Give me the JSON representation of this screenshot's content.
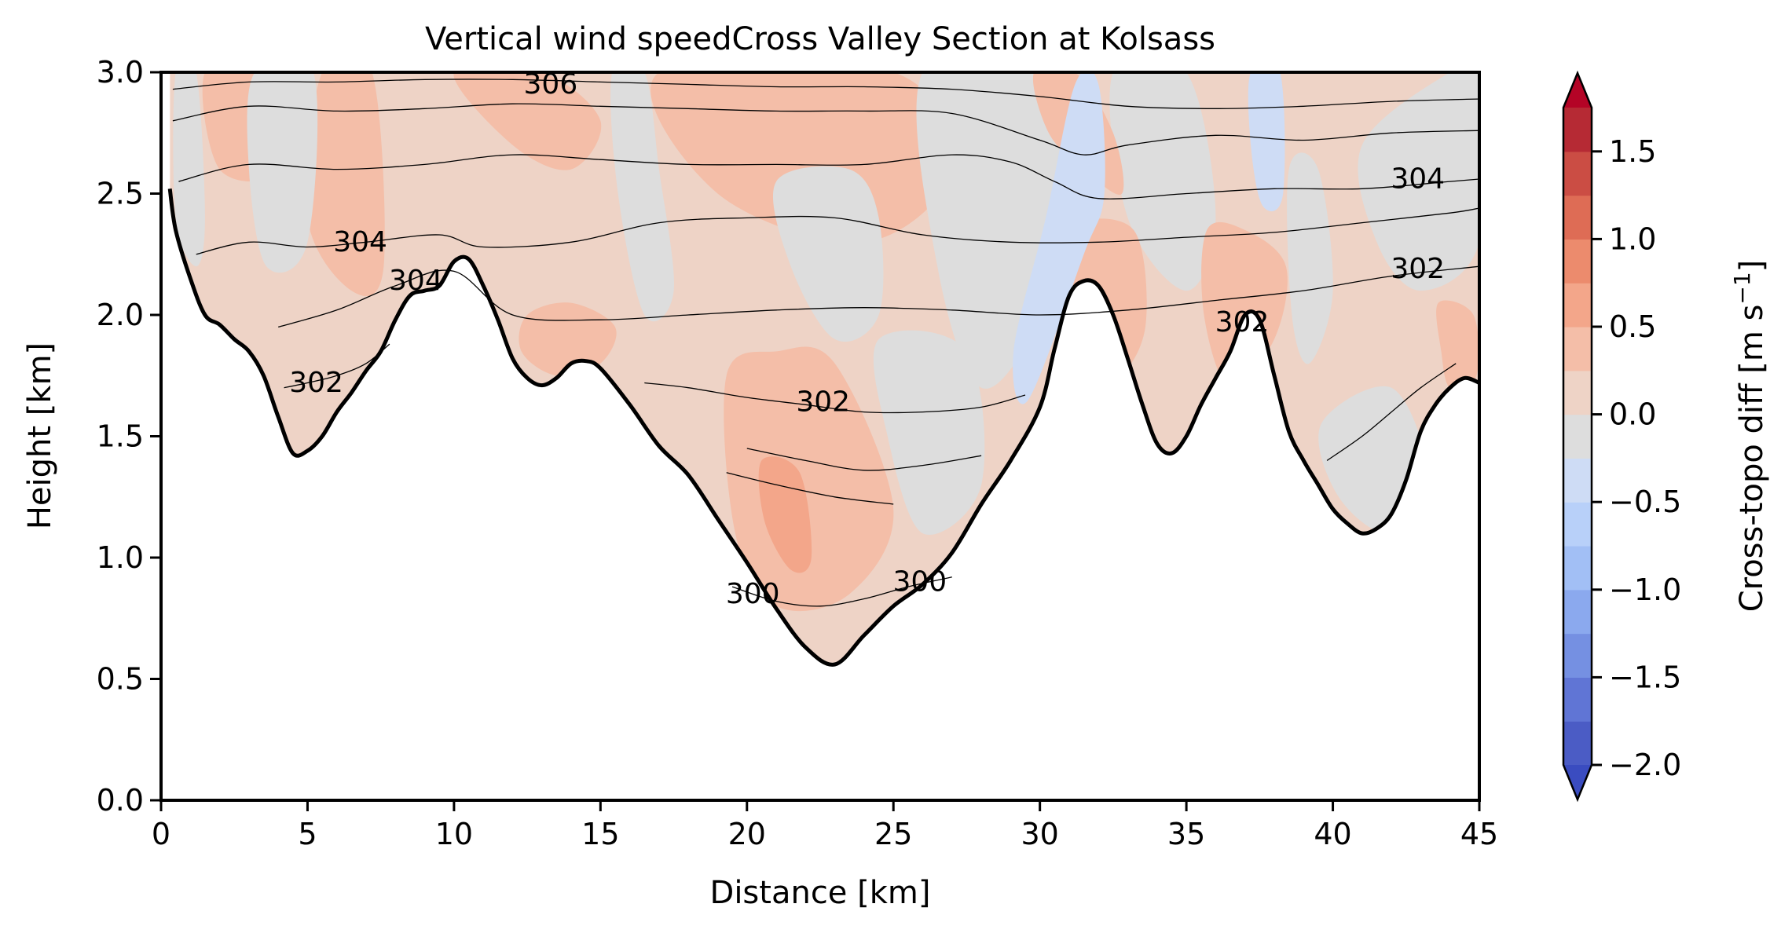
{
  "chart_data": {
    "type": "contour",
    "title": "Vertical wind speedCross Valley Section at Kolsass",
    "xlabel": "Distance [km]",
    "ylabel": "Height [km]",
    "xlim": [
      0,
      45
    ],
    "ylim": [
      0,
      3.0
    ],
    "x_ticks": [
      0,
      5,
      10,
      15,
      20,
      25,
      30,
      35,
      40,
      45
    ],
    "y_ticks": [
      0.0,
      0.5,
      1.0,
      1.5,
      2.0,
      2.5,
      3.0
    ],
    "x_tick_labels": [
      "0",
      "5",
      "10",
      "15",
      "20",
      "25",
      "30",
      "35",
      "40",
      "45"
    ],
    "y_tick_labels": [
      "0.0",
      "0.5",
      "1.0",
      "1.5",
      "2.0",
      "2.5",
      "3.0"
    ],
    "grid": false,
    "terrain": {
      "x": [
        0.3,
        0.5,
        1.0,
        1.5,
        2.0,
        2.5,
        3.0,
        3.5,
        4.0,
        4.5,
        5.0,
        5.5,
        6.0,
        6.5,
        7.0,
        7.5,
        8.0,
        8.5,
        9.0,
        9.5,
        10.0,
        10.5,
        11.0,
        11.5,
        12.0,
        12.5,
        13.0,
        13.5,
        14.0,
        14.5,
        15.0,
        16.0,
        17.0,
        18.0,
        19.0,
        20.0,
        21.0,
        22.0,
        23.0,
        24.0,
        25.0,
        26.0,
        27.0,
        28.0,
        29.0,
        30.0,
        30.5,
        31.0,
        31.5,
        32.0,
        32.5,
        33.0,
        33.5,
        34.0,
        34.5,
        35.0,
        35.5,
        36.0,
        36.5,
        37.0,
        37.5,
        38.0,
        38.5,
        39.0,
        39.5,
        40.0,
        40.5,
        41.0,
        41.5,
        42.0,
        42.5,
        43.0,
        43.5,
        44.0,
        44.5,
        45.0
      ],
      "y": [
        2.52,
        2.35,
        2.15,
        2.0,
        1.96,
        1.9,
        1.85,
        1.75,
        1.58,
        1.43,
        1.44,
        1.5,
        1.6,
        1.68,
        1.77,
        1.85,
        1.98,
        2.08,
        2.1,
        2.12,
        2.22,
        2.23,
        2.12,
        1.98,
        1.82,
        1.74,
        1.71,
        1.74,
        1.8,
        1.81,
        1.78,
        1.63,
        1.46,
        1.34,
        1.16,
        0.98,
        0.79,
        0.63,
        0.56,
        0.68,
        0.8,
        0.89,
        1.02,
        1.22,
        1.4,
        1.62,
        1.86,
        2.08,
        2.14,
        2.12,
        2.0,
        1.82,
        1.63,
        1.47,
        1.43,
        1.5,
        1.63,
        1.74,
        1.85,
        2.0,
        1.98,
        1.75,
        1.52,
        1.4,
        1.3,
        1.2,
        1.14,
        1.1,
        1.12,
        1.18,
        1.32,
        1.52,
        1.63,
        1.7,
        1.74,
        1.72
      ]
    },
    "colorbar": {
      "label": "Cross-topo diff [m s",
      "label_sup": "−1",
      "label_end": "]",
      "levels": [
        -2.0,
        -1.75,
        -1.5,
        -1.25,
        -1.0,
        -0.75,
        -0.5,
        -0.25,
        0.0,
        0.25,
        0.5,
        0.75,
        1.0,
        1.25,
        1.5,
        1.75
      ],
      "colors": [
        "#4b5cc5",
        "#6075d5",
        "#7590e2",
        "#8ba9ee",
        "#a2bff5",
        "#b8d0f9",
        "#cedcf5",
        "#dddddd",
        "#eed3c6",
        "#f4bea8",
        "#f3a68a",
        "#ec8b6d",
        "#de6c55",
        "#cb4d44",
        "#b62a34"
      ],
      "under_color": "#3a4cc0",
      "over_color": "#b40426",
      "extend": "both",
      "tick_values": [
        -2.0,
        -1.5,
        -1.0,
        -0.5,
        0.0,
        0.5,
        1.0,
        1.5
      ],
      "tick_labels": [
        "−2.0",
        "−1.5",
        "−1.0",
        "−0.5",
        "0.0",
        "0.5",
        "1.0",
        "1.5"
      ]
    },
    "contour_lines": [
      {
        "level": 300,
        "x": [
          19.5,
          21,
          22.5,
          24,
          25.5,
          27
        ],
        "y": [
          0.88,
          0.82,
          0.8,
          0.83,
          0.88,
          0.92
        ]
      },
      {
        "level": 300,
        "x": [
          19.3,
          21,
          23,
          25
        ],
        "y": [
          1.35,
          1.3,
          1.25,
          1.22
        ]
      },
      {
        "level": 300,
        "x": [
          20,
          22,
          24,
          26,
          28
        ],
        "y": [
          1.45,
          1.4,
          1.36,
          1.38,
          1.42
        ]
      },
      {
        "level": 302,
        "x": [
          4.2,
          5,
          6,
          7,
          7.8
        ],
        "y": [
          1.7,
          1.72,
          1.75,
          1.8,
          1.88
        ]
      },
      {
        "level": 302,
        "x": [
          16.5,
          18,
          20,
          22,
          24,
          26,
          28,
          29.5
        ],
        "y": [
          1.72,
          1.7,
          1.66,
          1.63,
          1.6,
          1.6,
          1.62,
          1.67
        ]
      },
      {
        "level": 302,
        "x": [
          39.8,
          41,
          42,
          43,
          44.2
        ],
        "y": [
          1.4,
          1.5,
          1.6,
          1.7,
          1.8
        ]
      },
      {
        "level": 302,
        "x": [
          4.0,
          6,
          8,
          10,
          12,
          15,
          18,
          21,
          24,
          27,
          30,
          33,
          36,
          39,
          42,
          45
        ],
        "y": [
          1.95,
          2.02,
          2.12,
          2.18,
          2.0,
          1.98,
          2.0,
          2.02,
          2.03,
          2.02,
          2.0,
          2.02,
          2.06,
          2.1,
          2.16,
          2.2
        ]
      },
      {
        "level": 304,
        "x": [
          1.2,
          3,
          5,
          7,
          9.5,
          11,
          14,
          17,
          20,
          23,
          26,
          29,
          32,
          35,
          38,
          41,
          44,
          45
        ],
        "y": [
          2.25,
          2.3,
          2.28,
          2.3,
          2.33,
          2.28,
          2.3,
          2.38,
          2.4,
          2.4,
          2.33,
          2.3,
          2.3,
          2.32,
          2.34,
          2.38,
          2.42,
          2.44
        ]
      },
      {
        "level": 304,
        "x": [
          0.6,
          3,
          6,
          9,
          12,
          15,
          18,
          21,
          24,
          27,
          29,
          30.5,
          32,
          35,
          38,
          41,
          44,
          45
        ],
        "y": [
          2.55,
          2.62,
          2.6,
          2.62,
          2.66,
          2.64,
          2.62,
          2.62,
          2.62,
          2.66,
          2.63,
          2.55,
          2.48,
          2.5,
          2.52,
          2.52,
          2.55,
          2.56
        ]
      },
      {
        "level": 306,
        "x": [
          0.4,
          3,
          6,
          9,
          12,
          15,
          18,
          21,
          24,
          27,
          30,
          31.5,
          33,
          36,
          39,
          42,
          45
        ],
        "y": [
          2.8,
          2.86,
          2.84,
          2.85,
          2.87,
          2.86,
          2.85,
          2.84,
          2.84,
          2.83,
          2.72,
          2.66,
          2.7,
          2.74,
          2.72,
          2.75,
          2.76
        ]
      },
      {
        "level": 306,
        "x": [
          0.4,
          3,
          6,
          9,
          12,
          15,
          18,
          21,
          24,
          27,
          30,
          33,
          36,
          39,
          42,
          45
        ],
        "y": [
          2.93,
          2.96,
          2.96,
          2.97,
          2.97,
          2.96,
          2.95,
          2.94,
          2.94,
          2.93,
          2.9,
          2.86,
          2.85,
          2.86,
          2.88,
          2.89
        ]
      }
    ],
    "contour_labels": [
      {
        "text": "306",
        "x": 13.3,
        "y": 2.95
      },
      {
        "text": "304",
        "x": 6.8,
        "y": 2.3
      },
      {
        "text": "304",
        "x": 8.7,
        "y": 2.14
      },
      {
        "text": "302",
        "x": 5.3,
        "y": 1.72
      },
      {
        "text": "302",
        "x": 22.6,
        "y": 1.64
      },
      {
        "text": "302",
        "x": 36.9,
        "y": 1.97
      },
      {
        "text": "302",
        "x": 42.9,
        "y": 2.19
      },
      {
        "text": "304",
        "x": 42.9,
        "y": 2.56
      },
      {
        "text": "300",
        "x": 20.2,
        "y": 0.85
      },
      {
        "text": "300",
        "x": 25.9,
        "y": 0.9
      }
    ],
    "field_patches": [
      {
        "level_index": 8,
        "x": [
          0.3,
          45,
          45,
          0.3
        ],
        "y": [
          3.0,
          3.0,
          0.0,
          0.0
        ]
      },
      {
        "level_index": 9,
        "x": [
          1.5,
          3.5,
          4.0,
          2.0
        ],
        "y": [
          3.0,
          3.0,
          2.6,
          2.6
        ]
      },
      {
        "level_index": 9,
        "x": [
          5.5,
          7.2,
          7.6,
          6.5,
          5.0
        ],
        "y": [
          3.0,
          3.0,
          2.2,
          2.1,
          2.4
        ]
      },
      {
        "level_index": 9,
        "x": [
          10,
          13,
          15,
          14,
          12
        ],
        "y": [
          3.0,
          3.0,
          2.8,
          2.6,
          2.7
        ]
      },
      {
        "level_index": 9,
        "x": [
          17,
          25,
          27,
          24,
          19
        ],
        "y": [
          3.0,
          3.0,
          2.6,
          2.3,
          2.5
        ]
      },
      {
        "level_index": 7,
        "x": [
          0.5,
          1.2,
          1.5,
          1.2,
          0.5
        ],
        "y": [
          3.0,
          3.0,
          2.4,
          2.2,
          2.4
        ]
      },
      {
        "level_index": 7,
        "x": [
          3.2,
          5.2,
          5.0,
          3.6,
          3.0
        ],
        "y": [
          3.0,
          3.0,
          2.3,
          2.2,
          2.6
        ]
      },
      {
        "level_index": 7,
        "x": [
          15.4,
          16.5,
          17.0,
          17.5,
          16.5,
          15.6
        ],
        "y": [
          3.0,
          3.0,
          2.6,
          2.1,
          2.0,
          2.5
        ]
      },
      {
        "level_index": 7,
        "x": [
          21,
          23.5,
          24.5,
          24.5,
          23,
          21.5
        ],
        "y": [
          2.55,
          2.6,
          2.4,
          2.0,
          1.9,
          2.2
        ]
      },
      {
        "level_index": 7,
        "x": [
          26,
          30,
          31,
          30,
          28,
          26.5
        ],
        "y": [
          3.0,
          3.0,
          2.6,
          2.0,
          1.7,
          2.2
        ]
      },
      {
        "level_index": 7,
        "x": [
          24.5,
          27.5,
          28,
          26,
          24.8
        ],
        "y": [
          1.9,
          1.85,
          1.3,
          1.1,
          1.5
        ]
      },
      {
        "level_index": 7,
        "x": [
          32.5,
          35,
          36,
          35,
          33
        ],
        "y": [
          3.0,
          3.0,
          2.4,
          2.1,
          2.4
        ]
      },
      {
        "level_index": 7,
        "x": [
          38.5,
          39.5,
          40.0,
          39.2,
          38.6
        ],
        "y": [
          2.6,
          2.6,
          2.1,
          1.8,
          2.0
        ]
      },
      {
        "level_index": 7,
        "x": [
          41,
          44,
          45,
          45,
          43,
          41.5
        ],
        "y": [
          2.7,
          3.0,
          3.0,
          2.3,
          2.1,
          2.3
        ]
      },
      {
        "level_index": 7,
        "x": [
          39.6,
          42,
          43.2,
          42,
          40.2
        ],
        "y": [
          1.55,
          1.7,
          1.35,
          1.1,
          1.25
        ]
      },
      {
        "level_index": 9,
        "x": [
          19.3,
          21,
          23,
          25,
          23.5,
          21,
          19.6
        ],
        "y": [
          1.75,
          1.85,
          1.8,
          1.2,
          0.85,
          0.8,
          1.1
        ]
      },
      {
        "level_index": 10,
        "x": [
          20.5,
          21.8,
          22.2,
          21.5,
          20.6
        ],
        "y": [
          1.4,
          1.35,
          1.0,
          0.95,
          1.15
        ]
      },
      {
        "level_index": 9,
        "x": [
          12.5,
          14,
          15.5,
          15,
          13.5,
          12.3
        ],
        "y": [
          2.0,
          2.05,
          1.95,
          1.8,
          1.75,
          1.85
        ]
      },
      {
        "level_index": 9,
        "x": [
          29.8,
          31.2,
          32.5,
          32.8,
          31.5,
          30.3
        ],
        "y": [
          3.0,
          3.0,
          2.75,
          2.5,
          2.6,
          2.75
        ]
      },
      {
        "level_index": 9,
        "x": [
          31,
          33.2,
          33.6,
          32.5,
          31.0
        ],
        "y": [
          2.35,
          2.35,
          1.95,
          1.75,
          2.0
        ]
      },
      {
        "level_index": 9,
        "x": [
          43.6,
          44.8,
          44.9,
          44.0,
          43.7
        ],
        "y": [
          2.05,
          2.0,
          1.75,
          1.7,
          1.85
        ]
      },
      {
        "level_index": 9,
        "x": [
          35.7,
          37.0,
          38.4,
          38.0,
          36.5,
          35.6
        ],
        "y": [
          2.35,
          2.35,
          2.2,
          1.9,
          1.7,
          2.0
        ]
      },
      {
        "level_index": 6,
        "x": [
          31.2,
          32.0,
          32.2,
          31.5,
          29.6,
          29.1,
          30.2
        ],
        "y": [
          2.95,
          2.95,
          2.5,
          2.25,
          1.65,
          1.85,
          2.4
        ]
      },
      {
        "level_index": 6,
        "x": [
          37.2,
          38.2,
          38.3,
          37.6,
          37.2
        ],
        "y": [
          3.0,
          3.0,
          2.5,
          2.45,
          2.7
        ]
      }
    ]
  }
}
